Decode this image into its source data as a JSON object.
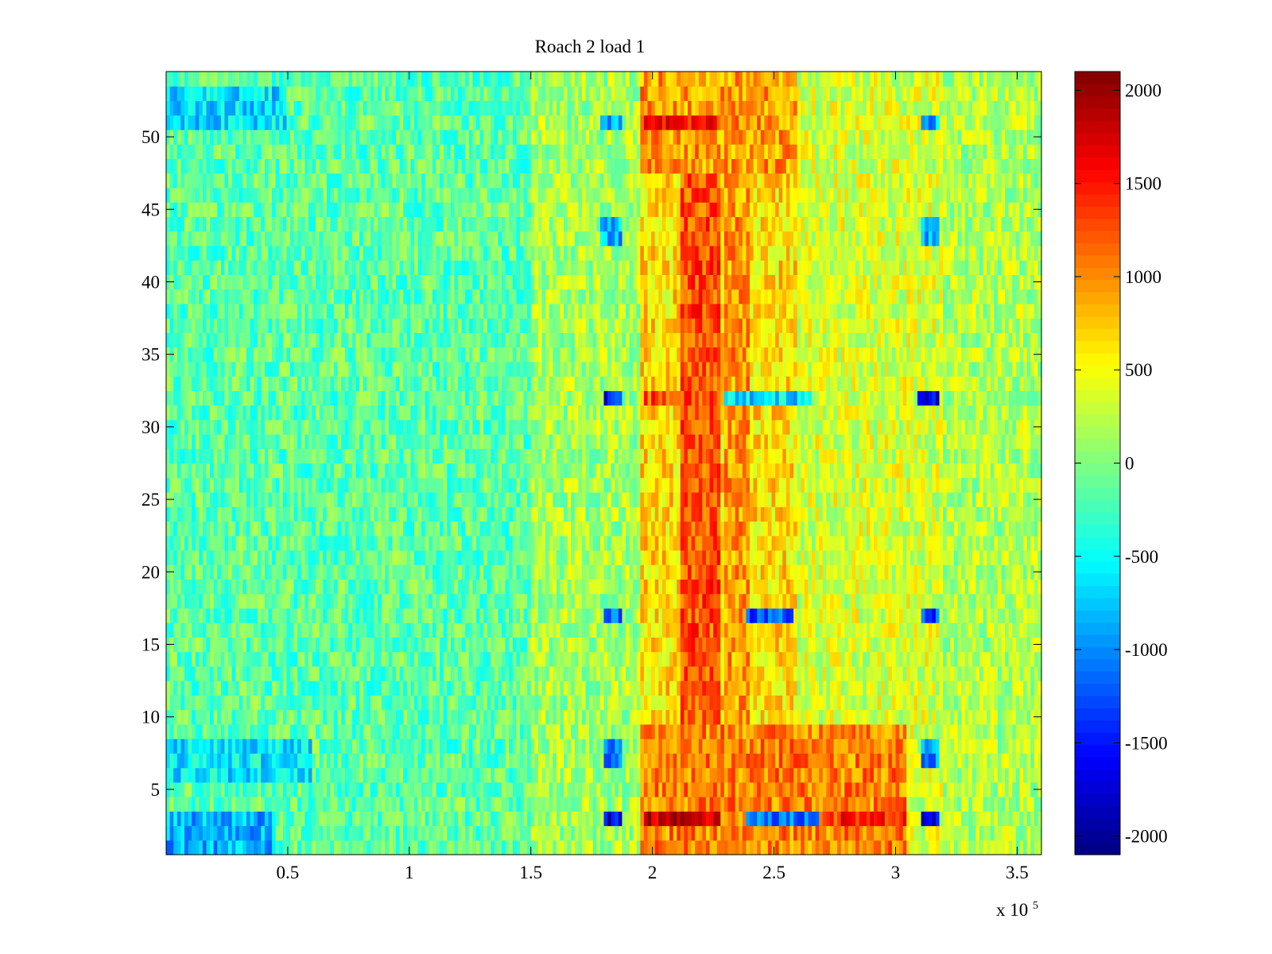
{
  "chart_data": {
    "type": "heatmap",
    "title": "Roach 2 load 1",
    "xlabel": "",
    "ylabel": "",
    "x_exponent_label": "x 10",
    "x_exponent_power": "5",
    "xlim": [
      0,
      360000
    ],
    "ylim": [
      0.5,
      54.5
    ],
    "x_ticks": [
      {
        "value": 50000,
        "label": "0.5"
      },
      {
        "value": 100000,
        "label": "1"
      },
      {
        "value": 150000,
        "label": "1.5"
      },
      {
        "value": 200000,
        "label": "2"
      },
      {
        "value": 250000,
        "label": "2.5"
      },
      {
        "value": 300000,
        "label": "3"
      },
      {
        "value": 350000,
        "label": "3.5"
      }
    ],
    "y_ticks": [
      {
        "value": 5,
        "label": "5"
      },
      {
        "value": 10,
        "label": "10"
      },
      {
        "value": 15,
        "label": "15"
      },
      {
        "value": 20,
        "label": "20"
      },
      {
        "value": 25,
        "label": "25"
      },
      {
        "value": 30,
        "label": "30"
      },
      {
        "value": 35,
        "label": "35"
      },
      {
        "value": 40,
        "label": "40"
      },
      {
        "value": 45,
        "label": "45"
      },
      {
        "value": 50,
        "label": "50"
      }
    ],
    "colorbar": {
      "colormap": "jet",
      "clim": [
        -2100,
        2100
      ],
      "ticks": [
        {
          "value": 2000,
          "label": "2000"
        },
        {
          "value": 1500,
          "label": "1500"
        },
        {
          "value": 1000,
          "label": "1000"
        },
        {
          "value": 500,
          "label": "500"
        },
        {
          "value": 0,
          "label": "0"
        },
        {
          "value": -500,
          "label": "-500"
        },
        {
          "value": -1000,
          "label": "-1000"
        },
        {
          "value": -1500,
          "label": "-1500"
        },
        {
          "value": -2000,
          "label": "-2000"
        }
      ]
    },
    "rows": 54,
    "row_range": [
      1,
      54
    ],
    "column_bins": 240,
    "x_bin_width": 1500,
    "baseline_value": -150,
    "noise_amplitude": 380,
    "features": [
      {
        "name": "low-x blue edge rows",
        "x_range": [
          0,
          45000
        ],
        "rows": [
          1,
          2,
          3
        ],
        "value": -850
      },
      {
        "name": "low-x blue band upper",
        "x_range": [
          0,
          50000
        ],
        "rows": [
          51,
          52,
          53
        ],
        "value": -650
      },
      {
        "name": "low-x blue band lower",
        "x_range": [
          0,
          60000
        ],
        "rows": [
          6,
          7,
          8
        ],
        "value": -600
      },
      {
        "name": "rising mid region",
        "x_range": [
          150000,
          195000
        ],
        "rows": [
          1,
          54
        ],
        "value": 150
      },
      {
        "name": "hot band central",
        "x_range": [
          195000,
          260000
        ],
        "rows": [
          1,
          54
        ],
        "value": 650
      },
      {
        "name": "hot core column",
        "x_range": [
          212000,
          228000
        ],
        "rows": [
          1,
          54
        ],
        "value": 1250
      },
      {
        "name": "secondary hot column",
        "x_range": [
          230000,
          240000
        ],
        "rows": [
          1,
          54
        ],
        "value": 950
      },
      {
        "name": "warm tail",
        "x_range": [
          260000,
          320000
        ],
        "rows": [
          1,
          54
        ],
        "value": 350
      },
      {
        "name": "right region",
        "x_range": [
          320000,
          360000
        ],
        "rows": [
          1,
          54
        ],
        "value": 200
      },
      {
        "name": "hot bottom rows",
        "x_range": [
          195000,
          305000
        ],
        "rows": [
          1,
          2,
          3,
          4,
          5,
          6,
          7,
          8,
          9
        ],
        "value": 1050
      },
      {
        "name": "hot top rows",
        "x_range": [
          195000,
          260000
        ],
        "rows": [
          48,
          49,
          50,
          51,
          52,
          53,
          54
        ],
        "value": 950
      },
      {
        "name": "blue stripe row 3 left",
        "x_range": [
          180000,
          188000
        ],
        "rows": [
          3
        ],
        "value": -1650
      },
      {
        "name": "blue stripe row 3 mid",
        "x_range": [
          238000,
          268000
        ],
        "rows": [
          3
        ],
        "value": -1100
      },
      {
        "name": "blue stripe row 3 right",
        "x_range": [
          310000,
          318000
        ],
        "rows": [
          3
        ],
        "value": -1600
      },
      {
        "name": "red stripe row 3",
        "x_range": [
          197000,
          228000
        ],
        "rows": [
          3
        ],
        "value": 1800
      },
      {
        "name": "red stripe row 3 right",
        "x_range": [
          270000,
          305000
        ],
        "rows": [
          3
        ],
        "value": 1400
      },
      {
        "name": "blue stripe row 17 left",
        "x_range": [
          180000,
          188000
        ],
        "rows": [
          17
        ],
        "value": -1100
      },
      {
        "name": "blue stripe row 17 mid",
        "x_range": [
          238000,
          258000
        ],
        "rows": [
          17
        ],
        "value": -1250
      },
      {
        "name": "blue stripe row 17 right",
        "x_range": [
          310000,
          318000
        ],
        "rows": [
          17
        ],
        "value": -1300
      },
      {
        "name": "blue stripe row 32 left",
        "x_range": [
          180000,
          188000
        ],
        "rows": [
          32
        ],
        "value": -1500
      },
      {
        "name": "blue stripe row 32 mid",
        "x_range": [
          230000,
          265000
        ],
        "rows": [
          32
        ],
        "value": -650
      },
      {
        "name": "blue stripe row 32 right",
        "x_range": [
          309000,
          318000
        ],
        "rows": [
          32
        ],
        "value": -1750
      },
      {
        "name": "red stripe row 32",
        "x_range": [
          197000,
          228000
        ],
        "rows": [
          32
        ],
        "value": 1300
      },
      {
        "name": "blue stripe row 51",
        "x_range": [
          178000,
          188000
        ],
        "rows": [
          51,
          44,
          43
        ],
        "value": -850
      },
      {
        "name": "blue stripe row 51 right",
        "x_range": [
          310000,
          318000
        ],
        "rows": [
          51,
          44,
          43
        ],
        "value": -900
      },
      {
        "name": "red stripe row 51",
        "x_range": [
          197000,
          228000
        ],
        "rows": [
          51
        ],
        "value": 1500
      },
      {
        "name": "blue stripe row 7",
        "x_range": [
          180000,
          188000
        ],
        "rows": [
          7,
          8
        ],
        "value": -1100
      },
      {
        "name": "blue stripe row 7 right",
        "x_range": [
          310000,
          318000
        ],
        "rows": [
          7,
          8
        ],
        "value": -1000
      }
    ]
  }
}
